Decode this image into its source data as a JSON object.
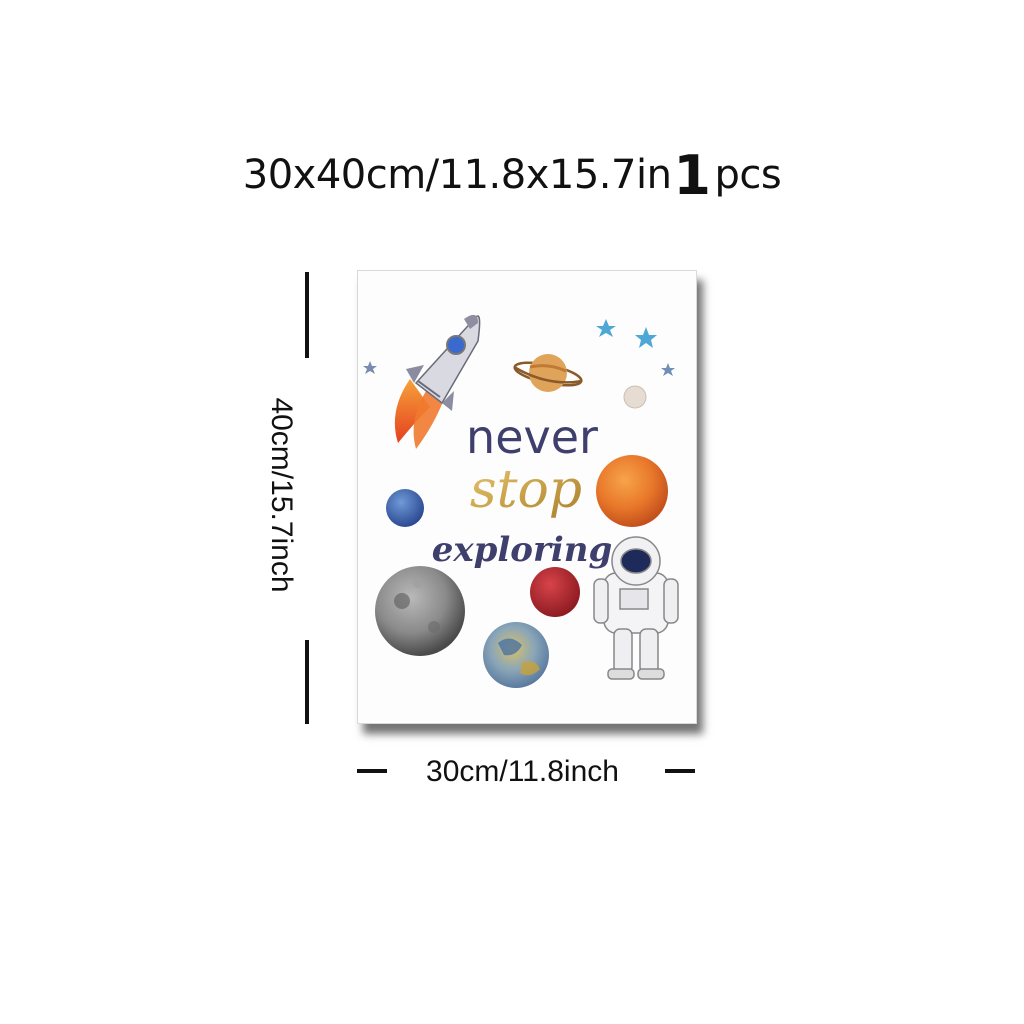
{
  "headline": {
    "size_text": "30x40cm/11.8x15.7in",
    "quantity": "1",
    "unit": "pcs"
  },
  "poster": {
    "line1": "never",
    "line2": "stop",
    "line3": "exploring",
    "colors": {
      "navy_text": "#3f3f6e",
      "gold_text": "#c9a24a",
      "rocket_flame": "#f06a2c",
      "mars": "#e8772a",
      "red_planet": "#b0242b",
      "blue_planet": "#3a5aa8",
      "moon_gray": "#8a8a8a",
      "star_blue": "#4fa7d6"
    },
    "illustrations": [
      "rocket-icon",
      "saturn-icon",
      "star-icon",
      "astronaut-icon",
      "planet-icon"
    ]
  },
  "dimensions": {
    "height_label": "40cm/15.7inch",
    "width_label": "30cm/11.8inch"
  }
}
